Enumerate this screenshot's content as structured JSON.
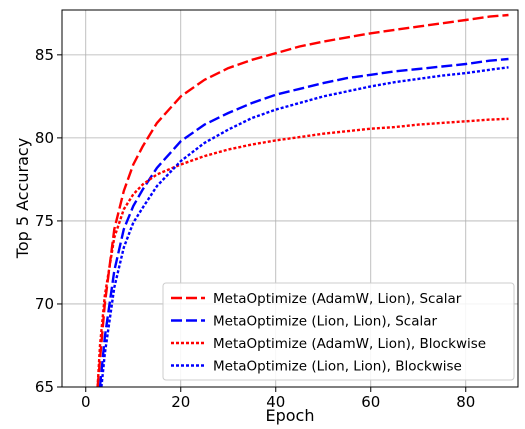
{
  "chart_data": {
    "type": "line",
    "xlabel": "Epoch",
    "ylabel": "Top 5 Accuracy",
    "xlim": [
      -5,
      91
    ],
    "ylim": [
      65,
      87.7
    ],
    "xticks": [
      0,
      20,
      40,
      60,
      80
    ],
    "yticks": [
      65,
      70,
      75,
      80,
      85
    ],
    "grid": true,
    "legend_position": "lower-right",
    "series": [
      {
        "name": "MetaOptimize (AdamW, Lion), Scalar",
        "color": "#ff0000",
        "style": "dashed",
        "x": [
          2.5,
          4,
          6,
          8,
          10,
          12,
          15,
          20,
          25,
          30,
          35,
          40,
          45,
          50,
          55,
          60,
          65,
          70,
          75,
          80,
          85,
          89
        ],
        "y": [
          65,
          70,
          74.5,
          76.8,
          78.4,
          79.5,
          80.9,
          82.5,
          83.5,
          84.2,
          84.7,
          85.1,
          85.5,
          85.8,
          86.05,
          86.3,
          86.5,
          86.7,
          86.9,
          87.1,
          87.3,
          87.4
        ]
      },
      {
        "name": "MetaOptimize (Lion, Lion), Scalar",
        "color": "#0000ff",
        "style": "dashed",
        "x": [
          3,
          4,
          6,
          8,
          10,
          12,
          15,
          20,
          25,
          30,
          35,
          40,
          45,
          50,
          55,
          60,
          65,
          70,
          75,
          80,
          85,
          89
        ],
        "y": [
          65,
          68,
          72,
          74.5,
          75.9,
          76.9,
          78.2,
          79.8,
          80.8,
          81.5,
          82.1,
          82.6,
          82.95,
          83.3,
          83.6,
          83.8,
          84.0,
          84.15,
          84.3,
          84.45,
          84.65,
          84.75
        ]
      },
      {
        "name": "MetaOptimize (AdamW, Lion), Blockwise",
        "color": "#ff0000",
        "style": "dotted",
        "x": [
          2.5,
          3,
          4,
          6,
          8,
          10,
          12,
          15,
          20,
          25,
          30,
          35,
          40,
          45,
          50,
          55,
          60,
          65,
          70,
          75,
          80,
          85,
          89
        ],
        "y": [
          65,
          67.5,
          70.5,
          74,
          75.7,
          76.6,
          77.2,
          77.8,
          78.4,
          78.9,
          79.3,
          79.6,
          79.85,
          80.05,
          80.25,
          80.4,
          80.55,
          80.65,
          80.8,
          80.9,
          81.0,
          81.1,
          81.15
        ]
      },
      {
        "name": "MetaOptimize (Lion, Lion), Blockwise",
        "color": "#0000ff",
        "style": "dotted",
        "x": [
          3.3,
          4,
          6,
          8,
          10,
          12,
          15,
          20,
          25,
          30,
          35,
          40,
          45,
          50,
          55,
          60,
          65,
          70,
          75,
          80,
          85,
          89
        ],
        "y": [
          65,
          67,
          71,
          73.4,
          74.9,
          75.8,
          77.1,
          78.6,
          79.7,
          80.5,
          81.2,
          81.7,
          82.1,
          82.5,
          82.8,
          83.1,
          83.35,
          83.55,
          83.75,
          83.9,
          84.1,
          84.25
        ]
      }
    ]
  }
}
